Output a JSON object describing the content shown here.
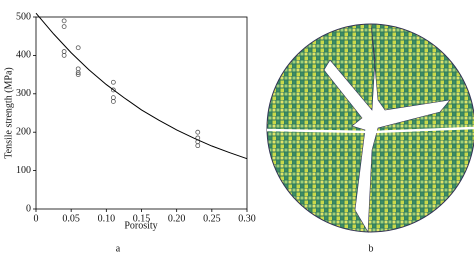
{
  "chart_data": {
    "type": "scatter",
    "x_label": "Porosity",
    "y_label": "Tensile strength (MPa)",
    "xlim": [
      0,
      0.3
    ],
    "ylim": [
      0,
      500
    ],
    "xticks": [
      0,
      0.05,
      {
        "value": 0.1,
        "label": "0.10"
      },
      0.15,
      {
        "value": 0.2,
        "label": "0.20"
      },
      0.25,
      {
        "value": 0.3,
        "label": "0.30"
      }
    ],
    "yticks": [
      0,
      100,
      200,
      300,
      400,
      500
    ],
    "series": [
      {
        "type": "scatter",
        "color": "#555555",
        "x": [
          0.04,
          0.04,
          0.04,
          0.04,
          0.06,
          0.06,
          0.06,
          0.06,
          0.11,
          0.11,
          0.11,
          0.11,
          0.23,
          0.23,
          0.23,
          0.23
        ],
        "values": [
          490,
          475,
          410,
          400,
          420,
          365,
          355,
          350,
          330,
          310,
          290,
          280,
          200,
          185,
          175,
          165
        ]
      },
      {
        "type": "line",
        "color": "#000000",
        "x": [
          0,
          0.025,
          0.05,
          0.075,
          0.1,
          0.125,
          0.15,
          0.175,
          0.2,
          0.225,
          0.25,
          0.275,
          0.3
        ],
        "values": [
          510,
          456,
          407,
          363,
          324,
          290,
          258,
          231,
          206,
          184,
          164,
          147,
          131
        ]
      }
    ]
  },
  "panel_labels": [
    "a",
    "b"
  ]
}
